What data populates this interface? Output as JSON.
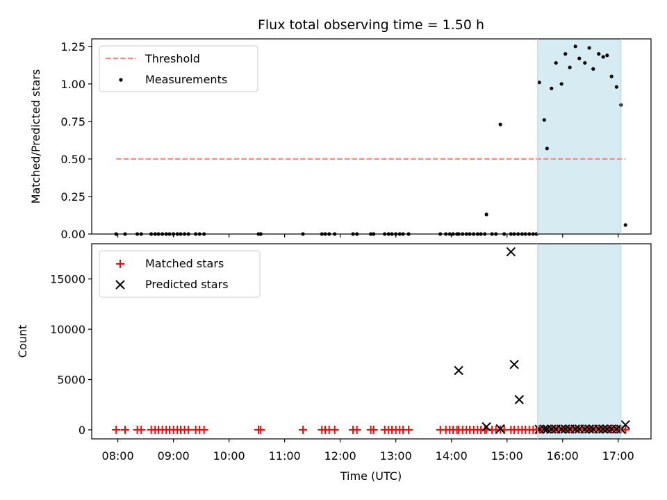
{
  "figure": {
    "title": "Flux total observing time = 1.50 h",
    "xlabel": "Time (UTC)",
    "x_ticks": [
      {
        "label": "08:00",
        "hour": 8
      },
      {
        "label": "09:00",
        "hour": 9
      },
      {
        "label": "10:00",
        "hour": 10
      },
      {
        "label": "11:00",
        "hour": 11
      },
      {
        "label": "12:00",
        "hour": 12
      },
      {
        "label": "13:00",
        "hour": 13
      },
      {
        "label": "14:00",
        "hour": 14
      },
      {
        "label": "15:00",
        "hour": 15
      },
      {
        "label": "16:00",
        "hour": 16
      },
      {
        "label": "17:00",
        "hour": 17
      }
    ],
    "xlim_hours": [
      7.53,
      17.59
    ],
    "shaded_span_hours": [
      15.55,
      17.05
    ],
    "colors": {
      "threshold": "#ff7f7f",
      "measurement": "#000000",
      "matched": "#ff0000",
      "predicted": "#000000",
      "shade": "#add8e6"
    }
  },
  "chart_data": [
    {
      "type": "scatter",
      "ylabel": "Matched/Predicted stars",
      "ylim": [
        0,
        1.3
      ],
      "y_ticks": [
        {
          "label": "0.00",
          "value": 0
        },
        {
          "label": "0.25",
          "value": 0.25
        },
        {
          "label": "0.50",
          "value": 0.5
        },
        {
          "label": "0.75",
          "value": 0.75
        },
        {
          "label": "1.00",
          "value": 1.0
        },
        {
          "label": "1.25",
          "value": 1.25
        }
      ],
      "legend": {
        "location": "upper left",
        "entries": [
          "Threshold",
          "Measurements"
        ]
      },
      "threshold": {
        "name": "Threshold",
        "value": 0.5,
        "x_range_hours": [
          7.97,
          17.13
        ]
      },
      "series": [
        {
          "name": "Measurements",
          "x_hours": [
            7.97,
            8.13,
            8.35,
            8.42,
            8.6,
            8.67,
            8.73,
            8.8,
            8.87,
            8.93,
            9.0,
            9.07,
            9.13,
            9.2,
            9.27,
            9.4,
            9.47,
            9.55,
            10.53,
            10.57,
            11.33,
            11.67,
            11.73,
            11.8,
            11.9,
            12.23,
            12.3,
            12.55,
            12.6,
            12.8,
            12.87,
            12.93,
            13.0,
            13.07,
            13.13,
            13.23,
            13.8,
            13.9,
            13.97,
            14.03,
            14.1,
            14.13,
            14.2,
            14.27,
            14.33,
            14.4,
            14.47,
            14.53,
            14.6,
            14.63,
            14.73,
            14.8,
            14.88,
            14.95,
            15.07,
            15.13,
            15.2,
            15.27,
            15.33,
            15.4,
            15.47,
            15.53,
            15.58,
            15.67,
            15.72,
            15.8,
            15.88,
            15.98,
            16.05,
            16.13,
            16.23,
            16.3,
            16.4,
            16.48,
            16.55,
            16.65,
            16.73,
            16.8,
            16.88,
            16.97,
            17.05,
            17.13
          ],
          "y": [
            0,
            0,
            0,
            0,
            0,
            0,
            0,
            0,
            0,
            0,
            0,
            0,
            0,
            0,
            0,
            0,
            0,
            0,
            0,
            0,
            0,
            0,
            0,
            0,
            0,
            0,
            0,
            0,
            0,
            0,
            0,
            0,
            0,
            0,
            0,
            0,
            0,
            0,
            0,
            0,
            0,
            0,
            0,
            0,
            0,
            0,
            0,
            0,
            0,
            0.13,
            0,
            0,
            0.73,
            0,
            0,
            0,
            0,
            0,
            0,
            0,
            0,
            0,
            1.01,
            0.76,
            0.57,
            0.97,
            1.14,
            1.0,
            1.2,
            1.11,
            1.25,
            1.17,
            1.14,
            1.24,
            1.1,
            1.2,
            1.18,
            1.19,
            1.05,
            0.98,
            0.86,
            0.06
          ]
        }
      ]
    },
    {
      "type": "scatter",
      "xlabel": "Time (UTC)",
      "ylabel": "Count",
      "ylim": [
        -900,
        18500
      ],
      "y_ticks": [
        {
          "label": "0",
          "value": 0
        },
        {
          "label": "5000",
          "value": 5000
        },
        {
          "label": "10000",
          "value": 10000
        },
        {
          "label": "15000",
          "value": 15000
        }
      ],
      "legend": {
        "location": "upper left",
        "entries": [
          "Matched stars",
          "Predicted stars"
        ]
      },
      "series": [
        {
          "name": "Matched stars",
          "marker": "plus",
          "x_hours": [
            7.97,
            8.13,
            8.35,
            8.42,
            8.6,
            8.67,
            8.73,
            8.8,
            8.87,
            8.93,
            9.0,
            9.07,
            9.13,
            9.2,
            9.27,
            9.4,
            9.47,
            9.55,
            10.53,
            10.57,
            11.33,
            11.67,
            11.73,
            11.8,
            11.9,
            12.23,
            12.3,
            12.55,
            12.6,
            12.8,
            12.87,
            12.93,
            13.0,
            13.07,
            13.13,
            13.23,
            13.8,
            13.9,
            13.97,
            14.03,
            14.1,
            14.13,
            14.2,
            14.27,
            14.33,
            14.4,
            14.47,
            14.53,
            14.6,
            14.63,
            14.73,
            14.8,
            14.88,
            14.95,
            15.07,
            15.13,
            15.2,
            15.27,
            15.33,
            15.4,
            15.47,
            15.53,
            15.58,
            15.67,
            15.72,
            15.8,
            15.88,
            15.98,
            16.05,
            16.13,
            16.23,
            16.3,
            16.4,
            16.48,
            16.55,
            16.65,
            16.73,
            16.8,
            16.88,
            16.97,
            17.05,
            17.13
          ],
          "y": [
            0,
            0,
            0,
            0,
            0,
            0,
            0,
            0,
            0,
            0,
            0,
            0,
            0,
            0,
            0,
            0,
            0,
            0,
            0,
            0,
            0,
            0,
            0,
            0,
            0,
            0,
            0,
            0,
            0,
            0,
            0,
            0,
            0,
            0,
            0,
            0,
            0,
            0,
            0,
            0,
            0,
            0,
            0,
            0,
            0,
            0,
            0,
            0,
            0,
            40,
            0,
            0,
            30,
            0,
            0,
            0,
            0,
            0,
            0,
            0,
            0,
            0,
            50,
            60,
            40,
            70,
            80,
            70,
            90,
            80,
            100,
            90,
            80,
            100,
            80,
            90,
            90,
            90,
            80,
            70,
            60,
            10
          ]
        },
        {
          "name": "Predicted stars",
          "marker": "x",
          "x_hours": [
            14.13,
            14.63,
            14.88,
            15.07,
            15.13,
            15.22,
            15.58,
            15.67,
            15.72,
            15.8,
            15.88,
            15.98,
            16.05,
            16.13,
            16.23,
            16.3,
            16.4,
            16.48,
            16.55,
            16.65,
            16.73,
            16.8,
            16.88,
            16.97,
            17.05,
            17.13
          ],
          "y": [
            5900,
            300,
            100,
            17700,
            6500,
            3000,
            50,
            80,
            70,
            70,
            70,
            70,
            80,
            70,
            80,
            80,
            70,
            80,
            70,
            80,
            80,
            80,
            80,
            70,
            70,
            500
          ]
        }
      ]
    }
  ]
}
